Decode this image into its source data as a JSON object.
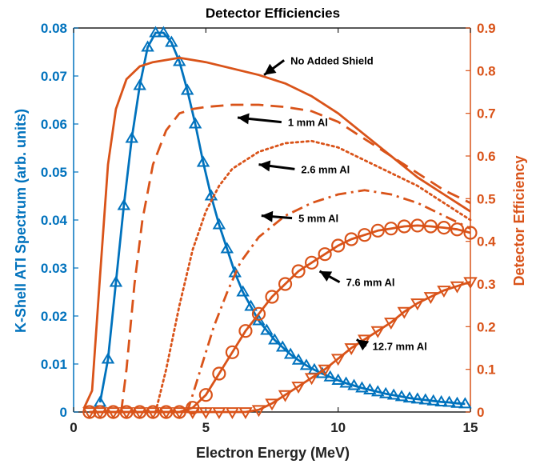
{
  "chart_data": {
    "type": "line",
    "title": "Detector Efficiencies",
    "xlabel": "Electron Energy (MeV)",
    "ylabel_left": "K-Shell ATI Spectrum (arb. units)",
    "ylabel_right": "Detector Efficiency",
    "xlim": [
      0,
      15
    ],
    "ylim_left": [
      0,
      0.08
    ],
    "ylim_right": [
      0,
      0.9
    ],
    "xticks": [
      "0",
      "5",
      "10",
      "15"
    ],
    "yticks_left": [
      "0",
      "0.01",
      "0.02",
      "0.03",
      "0.04",
      "0.05",
      "0.06",
      "0.07",
      "0.08"
    ],
    "yticks_right": [
      "0",
      "0.1",
      "0.2",
      "0.3",
      "0.4",
      "0.5",
      "0.6",
      "0.7",
      "0.8",
      "0.9"
    ],
    "colors": {
      "left_axis": "#0072BD",
      "right_axis": "#D95319"
    },
    "series": [
      {
        "axis": "left",
        "style": "solid",
        "marker": "triangle-up",
        "color": "#0072BD",
        "x": [
          1.0,
          1.3,
          1.6,
          1.9,
          2.2,
          2.5,
          2.8,
          3.1,
          3.4,
          3.7,
          4.0,
          4.3,
          4.6,
          4.9,
          5.2,
          5.5,
          5.8,
          6.1,
          6.4,
          6.7,
          7.0,
          7.3,
          7.6,
          7.9,
          8.2,
          8.5,
          8.8,
          9.1,
          9.4,
          9.7,
          10.0,
          10.3,
          10.6,
          10.9,
          11.2,
          11.5,
          11.8,
          12.1,
          12.4,
          12.7,
          13.0,
          13.3,
          13.6,
          13.9,
          14.2,
          14.5,
          14.8
        ],
        "values": [
          0.002,
          0.011,
          0.027,
          0.043,
          0.057,
          0.068,
          0.076,
          0.079,
          0.079,
          0.077,
          0.073,
          0.067,
          0.06,
          0.052,
          0.045,
          0.039,
          0.034,
          0.029,
          0.025,
          0.022,
          0.019,
          0.017,
          0.015,
          0.0135,
          0.012,
          0.0108,
          0.0097,
          0.0088,
          0.008,
          0.0073,
          0.0066,
          0.006,
          0.0055,
          0.005,
          0.0046,
          0.0042,
          0.0038,
          0.0035,
          0.0032,
          0.0029,
          0.0027,
          0.0025,
          0.0023,
          0.0021,
          0.002,
          0.0018,
          0.0017
        ]
      },
      {
        "axis": "right",
        "style": "solid",
        "marker": "none",
        "color": "#D95319",
        "x": [
          0.4,
          0.7,
          1.0,
          1.3,
          1.6,
          2.0,
          2.5,
          3.0,
          3.5,
          4.0,
          5.0,
          6.0,
          7.0,
          8.0,
          9.0,
          10.0,
          11.0,
          12.0,
          13.0,
          14.0,
          15.0
        ],
        "values": [
          0.01,
          0.05,
          0.32,
          0.58,
          0.71,
          0.78,
          0.81,
          0.82,
          0.825,
          0.83,
          0.82,
          0.805,
          0.79,
          0.77,
          0.74,
          0.7,
          0.65,
          0.6,
          0.55,
          0.51,
          0.47
        ]
      },
      {
        "axis": "right",
        "style": "dashed",
        "marker": "none",
        "color": "#D95319",
        "x": [
          1.8,
          2.0,
          2.3,
          2.6,
          3.0,
          3.5,
          4.0,
          4.5,
          5.0,
          6.0,
          7.0,
          8.0,
          9.0,
          10.0,
          11.0,
          12.0,
          13.0,
          14.0,
          15.0
        ],
        "values": [
          0.0,
          0.1,
          0.3,
          0.45,
          0.58,
          0.66,
          0.7,
          0.71,
          0.715,
          0.72,
          0.72,
          0.715,
          0.705,
          0.68,
          0.64,
          0.6,
          0.56,
          0.52,
          0.49
        ]
      },
      {
        "axis": "right",
        "style": "dotted",
        "marker": "none",
        "color": "#D95319",
        "x": [
          3.1,
          3.5,
          4.0,
          4.5,
          5.0,
          5.5,
          6.0,
          7.0,
          8.0,
          9.0,
          10.0,
          11.0,
          12.0,
          13.0,
          14.0,
          15.0
        ],
        "values": [
          0.0,
          0.1,
          0.25,
          0.38,
          0.47,
          0.53,
          0.57,
          0.61,
          0.63,
          0.635,
          0.62,
          0.59,
          0.56,
          0.53,
          0.49,
          0.45
        ]
      },
      {
        "axis": "right",
        "style": "dashdot",
        "marker": "none",
        "color": "#D95319",
        "x": [
          4.3,
          4.8,
          5.3,
          5.8,
          6.3,
          7.0,
          8.0,
          9.0,
          10.0,
          11.0,
          12.0,
          13.0,
          14.0,
          15.0
        ],
        "values": [
          0.0,
          0.1,
          0.2,
          0.28,
          0.35,
          0.41,
          0.46,
          0.49,
          0.51,
          0.52,
          0.51,
          0.49,
          0.46,
          0.43
        ]
      },
      {
        "axis": "right",
        "style": "solid",
        "marker": "circle",
        "color": "#D95319",
        "x": [
          0.6,
          1.0,
          1.5,
          2.0,
          2.5,
          3.0,
          3.5,
          4.0,
          4.5,
          5.0,
          5.5,
          6.0,
          6.5,
          7.0,
          7.5,
          8.0,
          8.5,
          9.0,
          9.5,
          10.0,
          10.5,
          11.0,
          11.5,
          12.0,
          12.5,
          13.0,
          13.5,
          14.0,
          14.5,
          15.0
        ],
        "values": [
          0.0,
          0.0,
          0.0,
          0.0,
          0.0,
          0.0,
          0.0,
          0.0,
          0.01,
          0.04,
          0.09,
          0.14,
          0.19,
          0.23,
          0.27,
          0.3,
          0.33,
          0.35,
          0.37,
          0.39,
          0.405,
          0.415,
          0.425,
          0.43,
          0.435,
          0.437,
          0.435,
          0.432,
          0.428,
          0.42
        ]
      },
      {
        "axis": "right",
        "style": "solid",
        "marker": "triangle-down",
        "color": "#D95319",
        "x": [
          0.6,
          1.0,
          1.5,
          2.0,
          2.5,
          3.0,
          3.5,
          4.0,
          4.5,
          5.0,
          5.5,
          6.0,
          6.5,
          7.0,
          7.5,
          8.0,
          8.5,
          9.0,
          9.5,
          10.0,
          10.5,
          11.0,
          11.5,
          12.0,
          12.5,
          13.0,
          13.5,
          14.0,
          14.5,
          15.0
        ],
        "values": [
          0.0,
          0.0,
          0.0,
          0.0,
          0.0,
          0.0,
          0.0,
          0.0,
          0.0,
          0.0,
          0.0,
          0.0,
          0.0,
          0.005,
          0.02,
          0.04,
          0.06,
          0.08,
          0.1,
          0.125,
          0.15,
          0.17,
          0.19,
          0.21,
          0.235,
          0.255,
          0.27,
          0.285,
          0.295,
          0.305
        ]
      }
    ],
    "annotations": [
      {
        "text": "No Added Shield",
        "x": 8.2,
        "y": 0.815,
        "arrow_to": [
          7.2,
          0.79
        ]
      },
      {
        "text": "1 mm Al",
        "x": 8.1,
        "y": 0.67,
        "arrow_to": [
          6.2,
          0.69
        ]
      },
      {
        "text": "2.6 mm Al",
        "x": 8.6,
        "y": 0.56,
        "arrow_to": [
          7.0,
          0.58
        ]
      },
      {
        "text": "5 mm Al",
        "x": 8.5,
        "y": 0.445,
        "arrow_to": [
          7.1,
          0.46
        ]
      },
      {
        "text": "7.6 mm Al",
        "x": 10.3,
        "y": 0.295,
        "arrow_to": [
          9.3,
          0.33
        ]
      },
      {
        "text": "12.7 mm Al",
        "x": 11.3,
        "y": 0.145,
        "arrow_to": [
          10.7,
          0.17
        ]
      }
    ]
  }
}
